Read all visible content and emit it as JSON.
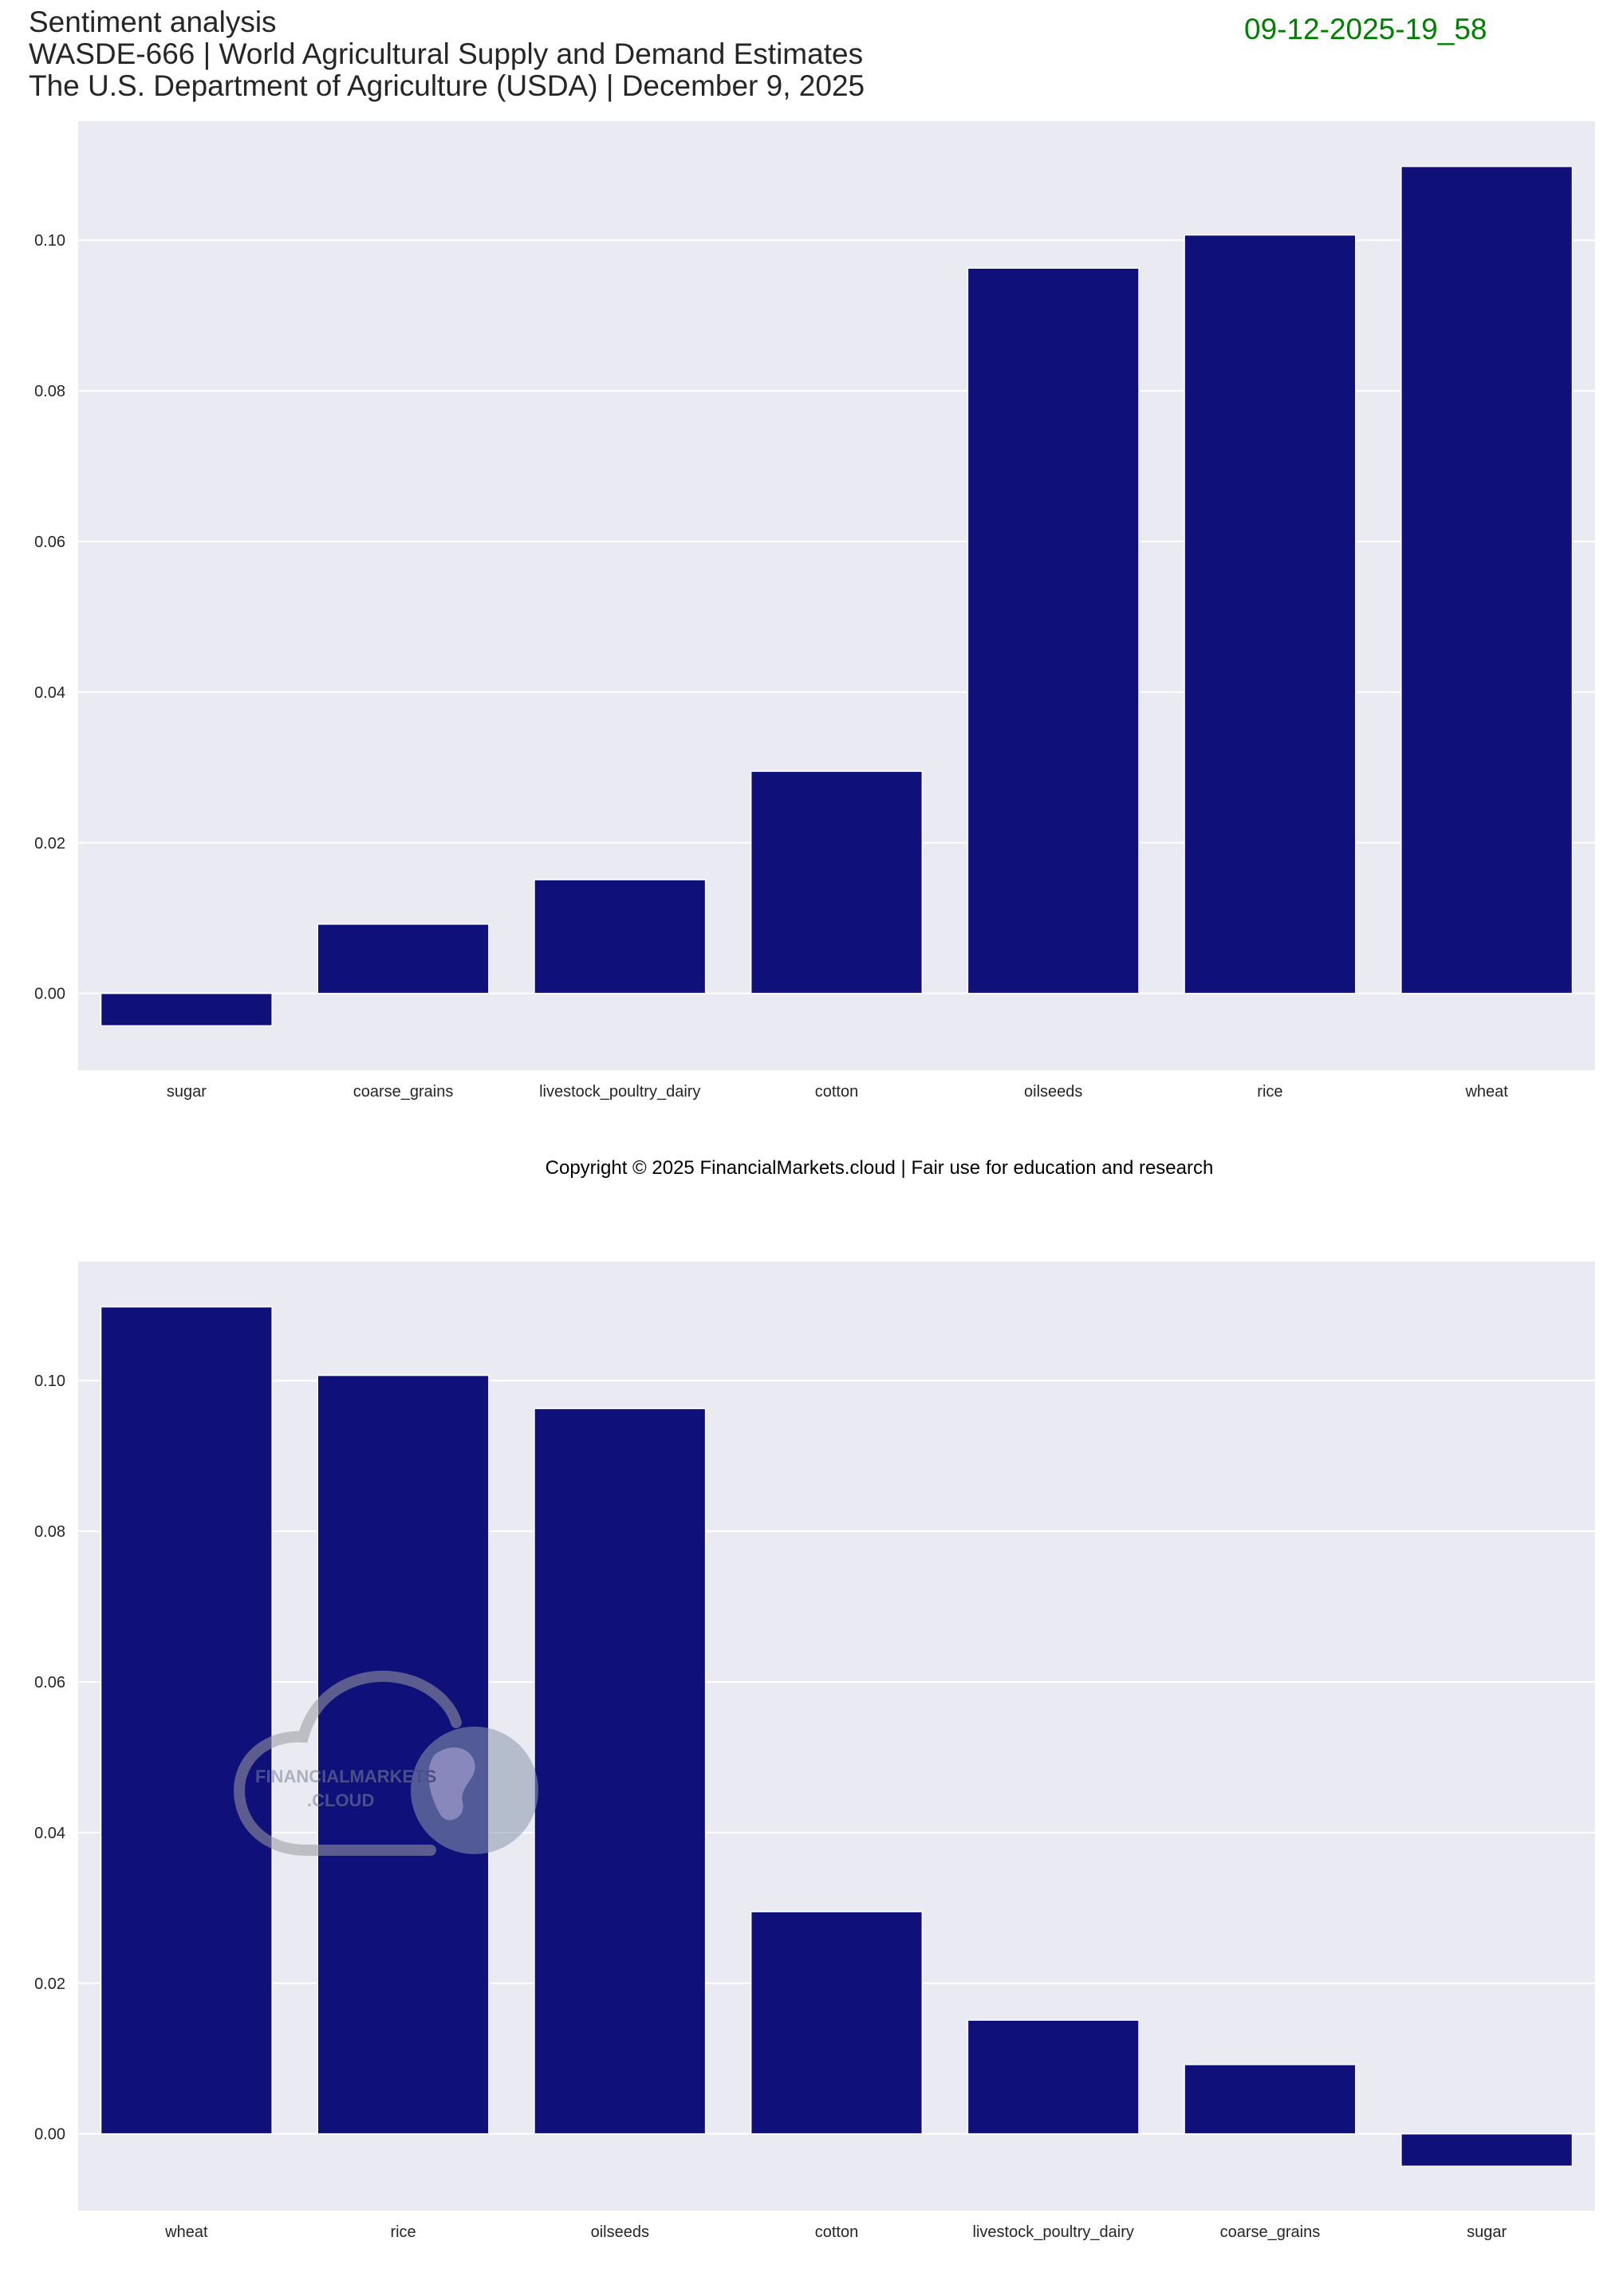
{
  "header": {
    "title_line1": "Sentiment analysis",
    "title_line2": "WASDE-666 | World Agricultural Supply and Demand Estimates",
    "title_line3": "The U.S. Department of Agriculture (USDA) | December 9, 2025",
    "timestamp": "09-12-2025-19_58"
  },
  "copyright": "Copyright © 2025 FinancialMarkets.cloud | Fair use for education and research",
  "watermark": {
    "text_line1": "FINANCIALMARKETS",
    "text_line2": ".CLOUD"
  },
  "colors": {
    "bar": "#10107a",
    "plot_bg": "#eaeaf2",
    "grid": "#ffffff",
    "timestamp": "#008000"
  },
  "chart_data": [
    {
      "type": "bar",
      "title": "",
      "xlabel": "",
      "ylabel": "",
      "categories": [
        "sugar",
        "coarse_grains",
        "livestock_poultry_dairy",
        "cotton",
        "oilseeds",
        "rice",
        "wheat"
      ],
      "values": [
        -0.0043,
        0.0092,
        0.0151,
        0.0295,
        0.0963,
        0.1007,
        0.1098
      ],
      "ylim": [
        -0.0102,
        0.1158
      ],
      "yticks": [
        "0.00",
        "0.02",
        "0.04",
        "0.06",
        "0.08",
        "0.10"
      ],
      "ytick_values": [
        0,
        0.02,
        0.04,
        0.06,
        0.08,
        0.1
      ],
      "grid": true
    },
    {
      "type": "bar",
      "title": "",
      "xlabel": "",
      "ylabel": "",
      "categories": [
        "wheat",
        "rice",
        "oilseeds",
        "cotton",
        "livestock_poultry_dairy",
        "coarse_grains",
        "sugar"
      ],
      "values": [
        0.1098,
        0.1007,
        0.0963,
        0.0295,
        0.0151,
        0.0092,
        -0.0043
      ],
      "ylim": [
        -0.0102,
        0.1158
      ],
      "yticks": [
        "0.00",
        "0.02",
        "0.04",
        "0.06",
        "0.08",
        "0.10"
      ],
      "ytick_values": [
        0,
        0.02,
        0.04,
        0.06,
        0.08,
        0.1
      ],
      "grid": true
    }
  ]
}
